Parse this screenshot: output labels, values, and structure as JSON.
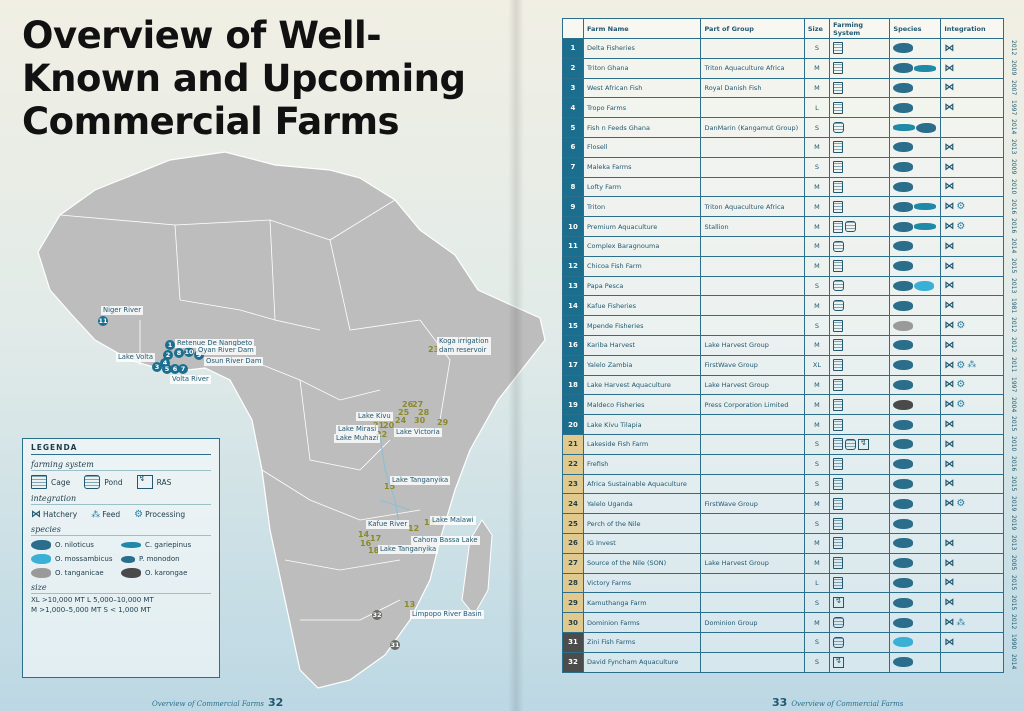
{
  "title": [
    "Overview of Well-",
    "Known and Upcoming",
    "Commercial Farms"
  ],
  "map_labels": [
    {
      "text": "Niger River"
    },
    {
      "text": "Retenue De Nangbeto"
    },
    {
      "text": "Oyan River Dam"
    },
    {
      "text": "Osun River Dam"
    },
    {
      "text": "Lake Volta"
    },
    {
      "text": "Volta River"
    },
    {
      "text": "Koga irrigation dam reservoir"
    },
    {
      "text": "Lake Kivu"
    },
    {
      "text": "Lake Mirasi"
    },
    {
      "text": "Lake Muhazi"
    },
    {
      "text": "Lake Victoria"
    },
    {
      "text": "Lake Tanganyika"
    },
    {
      "text": "Kafue River"
    },
    {
      "text": "Lake Malawi"
    },
    {
      "text": "Cahora Bassa Lake"
    },
    {
      "text": "Lake Tanganyika"
    },
    {
      "text": "Limpopo River Basin"
    }
  ],
  "legend": {
    "title": "LEGENDA",
    "farming_system_label": "farming system",
    "cage": "Cage",
    "pond": "Pond",
    "ras": "RAS",
    "integration_label": "integration",
    "hatchery": "Hatchery",
    "feed": "Feed",
    "processing": "Processing",
    "species_label": "species",
    "species": [
      {
        "name": "O. niloticus",
        "color": "#2a6e8c"
      },
      {
        "name": "C. gariepinus",
        "color": "#1f8aa8"
      },
      {
        "name": "O. mossambicus",
        "color": "#3ab0d6"
      },
      {
        "name": "P. monodon",
        "color": "#2a6e8c"
      },
      {
        "name": "O. tanganicae",
        "color": "#9a9a9a"
      },
      {
        "name": "O. karongae",
        "color": "#4a4a4a"
      }
    ],
    "size_label": "size",
    "size_line1": "XL >10,000 MT   L  5,000–10,000 MT",
    "size_line2": "M >1,000–5,000 MT   S  < 1,000 MT"
  },
  "footer_left": {
    "text": "Overview of Commercial Farms",
    "page": "32"
  },
  "footer_right": {
    "text": "Overview of Commercial Farms",
    "page": "33"
  },
  "table": {
    "headers": [
      "",
      "Farm Name",
      "Part of Group",
      "Size",
      "Farming System",
      "Species",
      "Integration"
    ],
    "rows": [
      {
        "n": "1",
        "name": "Delta Fisheries",
        "group": "",
        "size": "S",
        "sys": [
          "cage"
        ],
        "sp": [
          "nil"
        ],
        "int": [
          "hat"
        ],
        "year": "2012",
        "tone": "blue"
      },
      {
        "n": "2",
        "name": "Triton Ghana",
        "group": "Triton Aquaculture Africa",
        "size": "M",
        "sys": [
          "cage"
        ],
        "sp": [
          "nil",
          "gar"
        ],
        "int": [
          "hat"
        ],
        "year": "2009",
        "tone": "blue"
      },
      {
        "n": "3",
        "name": "West African Fish",
        "group": "Royal Danish Fish",
        "size": "M",
        "sys": [
          "cage"
        ],
        "sp": [
          "nil"
        ],
        "int": [
          "hat"
        ],
        "year": "2007",
        "tone": "blue"
      },
      {
        "n": "4",
        "name": "Tropo Farms",
        "group": "",
        "size": "L",
        "sys": [
          "cage"
        ],
        "sp": [
          "nil"
        ],
        "int": [
          "hat"
        ],
        "year": "1997",
        "tone": "blue"
      },
      {
        "n": "5",
        "name": "Fish n Feeds Ghana",
        "group": "DanMarin (Kangamut Group)",
        "size": "S",
        "sys": [
          "pond"
        ],
        "sp": [
          "gar",
          "nil"
        ],
        "int": [],
        "year": "2014",
        "tone": "blue"
      },
      {
        "n": "6",
        "name": "Flosell",
        "group": "",
        "size": "M",
        "sys": [
          "cage"
        ],
        "sp": [
          "nil"
        ],
        "int": [
          "hat"
        ],
        "year": "2013",
        "tone": "blue"
      },
      {
        "n": "7",
        "name": "Maleka Farms",
        "group": "",
        "size": "S",
        "sys": [
          "cage"
        ],
        "sp": [
          "nil"
        ],
        "int": [
          "hat"
        ],
        "year": "2009",
        "tone": "blue"
      },
      {
        "n": "8",
        "name": "Lofty Farm",
        "group": "",
        "size": "M",
        "sys": [
          "cage"
        ],
        "sp": [
          "nil"
        ],
        "int": [
          "hat"
        ],
        "year": "2010",
        "tone": "blue"
      },
      {
        "n": "9",
        "name": "Triton",
        "group": "Triton Aquaculture Africa",
        "size": "M",
        "sys": [
          "cage"
        ],
        "sp": [
          "nil",
          "gar"
        ],
        "int": [
          "hat",
          "proc"
        ],
        "year": "2016",
        "tone": "blue"
      },
      {
        "n": "10",
        "name": "Premium Aquaculture",
        "group": "Stallion",
        "size": "M",
        "sys": [
          "cage",
          "pond"
        ],
        "sp": [
          "nil",
          "gar"
        ],
        "int": [
          "hat",
          "proc"
        ],
        "year": "2016",
        "tone": "blue"
      },
      {
        "n": "11",
        "name": "Complex Baragnouma",
        "group": "",
        "size": "M",
        "sys": [
          "pond"
        ],
        "sp": [
          "nil"
        ],
        "int": [
          "hat"
        ],
        "year": "2014",
        "tone": "blue"
      },
      {
        "n": "12",
        "name": "Chicoa Fish Farm",
        "group": "",
        "size": "M",
        "sys": [
          "cage"
        ],
        "sp": [
          "nil"
        ],
        "int": [
          "hat"
        ],
        "year": "2015",
        "tone": "blue"
      },
      {
        "n": "13",
        "name": "Papa Pesca",
        "group": "",
        "size": "S",
        "sys": [
          "pond"
        ],
        "sp": [
          "nil",
          "mos"
        ],
        "int": [
          "hat"
        ],
        "year": "2013",
        "tone": "blue"
      },
      {
        "n": "14",
        "name": "Kafue Fisheries",
        "group": "",
        "size": "M",
        "sys": [
          "pond"
        ],
        "sp": [
          "nil"
        ],
        "int": [
          "hat"
        ],
        "year": "1981",
        "tone": "blue"
      },
      {
        "n": "15",
        "name": "Mpende Fisheries",
        "group": "",
        "size": "S",
        "sys": [
          "cage"
        ],
        "sp": [
          "tan"
        ],
        "int": [
          "hat",
          "proc"
        ],
        "year": "2012",
        "tone": "blue"
      },
      {
        "n": "16",
        "name": "Kariba Harvest",
        "group": "Lake Harvest Group",
        "size": "M",
        "sys": [
          "cage"
        ],
        "sp": [
          "nil"
        ],
        "int": [
          "hat"
        ],
        "year": "2012",
        "tone": "blue"
      },
      {
        "n": "17",
        "name": "Yalelo Zambia",
        "group": "FirstWave Group",
        "size": "XL",
        "sys": [
          "cage"
        ],
        "sp": [
          "nil"
        ],
        "int": [
          "hat",
          "proc",
          "feed"
        ],
        "year": "2011",
        "tone": "blue"
      },
      {
        "n": "18",
        "name": "Lake Harvest Aquaculture",
        "group": "Lake Harvest Group",
        "size": "M",
        "sys": [
          "cage"
        ],
        "sp": [
          "nil"
        ],
        "int": [
          "hat",
          "proc"
        ],
        "year": "1997",
        "tone": "blue"
      },
      {
        "n": "19",
        "name": "Maldeco Fisheries",
        "group": "Press Corporation Limited",
        "size": "M",
        "sys": [
          "cage"
        ],
        "sp": [
          "kar"
        ],
        "int": [
          "hat",
          "proc"
        ],
        "year": "2004",
        "tone": "blue"
      },
      {
        "n": "20",
        "name": "Lake Kivu Tilapia",
        "group": "",
        "size": "M",
        "sys": [
          "cage"
        ],
        "sp": [
          "nil"
        ],
        "int": [
          "hat"
        ],
        "year": "2015",
        "tone": "blue"
      },
      {
        "n": "21",
        "name": "Lakeside Fish Farm",
        "group": "",
        "size": "S",
        "sys": [
          "cage",
          "pond",
          "ras"
        ],
        "sp": [
          "nil"
        ],
        "int": [
          "hat"
        ],
        "year": "2010",
        "tone": "tan"
      },
      {
        "n": "22",
        "name": "Frefish",
        "group": "",
        "size": "S",
        "sys": [
          "cage"
        ],
        "sp": [
          "nil"
        ],
        "int": [
          "hat"
        ],
        "year": "2016",
        "tone": "tan"
      },
      {
        "n": "23",
        "name": "Africa Sustainable Aquaculture",
        "group": "",
        "size": "S",
        "sys": [
          "cage"
        ],
        "sp": [
          "nil"
        ],
        "int": [
          "hat"
        ],
        "year": "2015",
        "tone": "tan"
      },
      {
        "n": "24",
        "name": "Yalelo Uganda",
        "group": "FirstWave Group",
        "size": "M",
        "sys": [
          "cage"
        ],
        "sp": [
          "nil"
        ],
        "int": [
          "hat",
          "proc"
        ],
        "year": "2019",
        "tone": "tan"
      },
      {
        "n": "25",
        "name": "Perch of the Nile",
        "group": "",
        "size": "S",
        "sys": [
          "cage"
        ],
        "sp": [
          "nil"
        ],
        "int": [],
        "year": "2019",
        "tone": "tan"
      },
      {
        "n": "26",
        "name": "IG Invest",
        "group": "",
        "size": "M",
        "sys": [
          "cage"
        ],
        "sp": [
          "nil"
        ],
        "int": [
          "hat"
        ],
        "year": "2013",
        "tone": "tan"
      },
      {
        "n": "27",
        "name": "Source of the Nile (SON)",
        "group": "Lake Harvest Group",
        "size": "M",
        "sys": [
          "cage"
        ],
        "sp": [
          "nil"
        ],
        "int": [
          "hat"
        ],
        "year": "2005",
        "tone": "tan"
      },
      {
        "n": "28",
        "name": "Victory Farms",
        "group": "",
        "size": "L",
        "sys": [
          "cage"
        ],
        "sp": [
          "nil"
        ],
        "int": [
          "hat"
        ],
        "year": "2015",
        "tone": "tan"
      },
      {
        "n": "29",
        "name": "Kamuthanga Farm",
        "group": "",
        "size": "S",
        "sys": [
          "ras"
        ],
        "sp": [
          "nil"
        ],
        "int": [
          "hat"
        ],
        "year": "2015",
        "tone": "tan"
      },
      {
        "n": "30",
        "name": "Dominion Farms",
        "group": "Dominion Group",
        "size": "M",
        "sys": [
          "pond"
        ],
        "sp": [
          "nil"
        ],
        "int": [
          "hat",
          "feed"
        ],
        "year": "2012",
        "tone": "tan"
      },
      {
        "n": "31",
        "name": "Zini Fish Farms",
        "group": "",
        "size": "S",
        "sys": [
          "pond"
        ],
        "sp": [
          "mos"
        ],
        "int": [
          "hat"
        ],
        "year": "1990",
        "tone": "dk"
      },
      {
        "n": "32",
        "name": "David Fyncham Aquaculture",
        "group": "",
        "size": "S",
        "sys": [
          "ras"
        ],
        "sp": [
          "nil"
        ],
        "int": [],
        "year": "2014",
        "tone": "dk"
      }
    ]
  }
}
